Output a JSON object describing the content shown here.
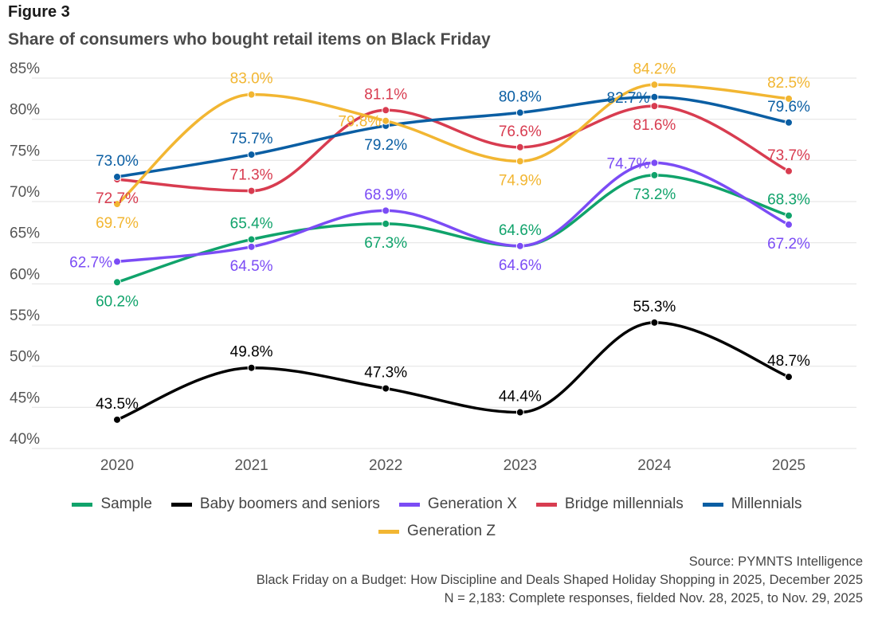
{
  "figure_label": "Figure 3",
  "title": "Share of consumers who bought retail items on Black Friday",
  "chart_data": {
    "type": "line",
    "title": "Share of consumers who bought retail items on Black Friday",
    "xlabel": "",
    "ylabel": "",
    "x": [
      "2020",
      "2021",
      "2022",
      "2023",
      "2024",
      "2025"
    ],
    "ylim": [
      40,
      85
    ],
    "yticks": [
      "40%",
      "45%",
      "50%",
      "55%",
      "60%",
      "65%",
      "70%",
      "75%",
      "80%",
      "85%"
    ],
    "grid": true,
    "legend_position": "bottom",
    "series": [
      {
        "name": "Sample",
        "color": "#10a36b",
        "values": [
          60.2,
          65.4,
          67.3,
          64.6,
          73.2,
          68.3
        ],
        "labels": [
          "60.2%",
          "65.4%",
          "67.3%",
          "64.6%",
          "73.2%",
          "68.3%"
        ],
        "label_pos": [
          "below",
          "above",
          "below",
          "above",
          "below",
          "above"
        ]
      },
      {
        "name": "Baby boomers and seniors",
        "color": "#000000",
        "values": [
          43.5,
          49.8,
          47.3,
          44.4,
          55.3,
          48.7
        ],
        "labels": [
          "43.5%",
          "49.8%",
          "47.3%",
          "44.4%",
          "55.3%",
          "48.7%"
        ],
        "label_pos": [
          "above",
          "above",
          "above",
          "above",
          "above",
          "above"
        ]
      },
      {
        "name": "Generation X",
        "color": "#7b4cf5",
        "values": [
          62.7,
          64.5,
          68.9,
          64.6,
          74.7,
          67.2
        ],
        "labels": [
          "62.7%",
          "64.5%",
          "68.9%",
          "64.6%",
          "74.7%",
          "67.2%"
        ],
        "label_pos": [
          "left",
          "below",
          "above",
          "below",
          "left",
          "below"
        ]
      },
      {
        "name": "Bridge millennials",
        "color": "#d83c50",
        "values": [
          72.7,
          71.3,
          81.1,
          76.6,
          81.6,
          73.7
        ],
        "labels": [
          "72.7%",
          "71.3%",
          "81.1%",
          "76.6%",
          "81.6%",
          "73.7%"
        ],
        "label_pos": [
          "below",
          "above",
          "above",
          "above",
          "below",
          "above"
        ]
      },
      {
        "name": "Millennials",
        "color": "#0a5ea3",
        "values": [
          73.0,
          75.7,
          79.2,
          80.8,
          82.7,
          79.6
        ],
        "labels": [
          "73.0%",
          "75.7%",
          "79.2%",
          "80.8%",
          "82.7%",
          "79.6%"
        ],
        "label_pos": [
          "above",
          "above",
          "below",
          "above",
          "left",
          "above"
        ]
      },
      {
        "name": "Generation Z",
        "color": "#f2b632",
        "values": [
          69.7,
          83.0,
          79.8,
          74.9,
          84.2,
          82.5
        ],
        "labels": [
          "69.7%",
          "83.0%",
          "79.8%",
          "74.9%",
          "84.2%",
          "82.5%"
        ],
        "label_pos": [
          "below",
          "above",
          "left",
          "below",
          "above",
          "above"
        ]
      }
    ]
  },
  "legend": {
    "row1": [
      "Sample",
      "Baby boomers and seniors",
      "Generation X",
      "Bridge millennials",
      "Millennials"
    ],
    "row2": [
      "Generation Z"
    ]
  },
  "source": {
    "line1": "Source: PYMNTS Intelligence",
    "line2": "Black Friday on a Budget: How Discipline and Deals Shaped Holiday Shopping in 2025, December 2025",
    "line3": "N = 2,183: Complete responses, fielded Nov. 28, 2025, to Nov. 29, 2025"
  }
}
